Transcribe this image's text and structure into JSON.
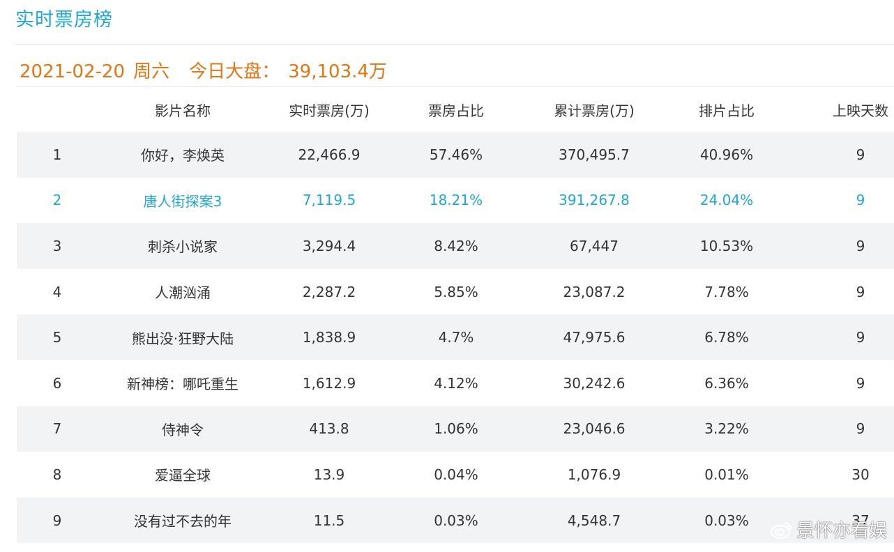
{
  "title": "实时票房榜",
  "summary": {
    "date": "2021-02-20",
    "weekday": "周六",
    "label": "今日大盘：",
    "total": "39,103.4万"
  },
  "columns": {
    "rank": "",
    "name": "影片名称",
    "realtime": "实时票房(万)",
    "share": "票房占比",
    "cumulative": "累计票房(万)",
    "schedule": "排片占比",
    "days": "上映天数"
  },
  "rows": [
    {
      "rank": "1",
      "name": "你好，李焕英",
      "realtime": "22,466.9",
      "share": "57.46%",
      "cumulative": "370,495.7",
      "schedule": "40.96%",
      "days": "9"
    },
    {
      "rank": "2",
      "name": "唐人街探案3",
      "realtime": "7,119.5",
      "share": "18.21%",
      "cumulative": "391,267.8",
      "schedule": "24.04%",
      "days": "9"
    },
    {
      "rank": "3",
      "name": "刺杀小说家",
      "realtime": "3,294.4",
      "share": "8.42%",
      "cumulative": "67,447",
      "schedule": "10.53%",
      "days": "9"
    },
    {
      "rank": "4",
      "name": "人潮汹涌",
      "realtime": "2,287.2",
      "share": "5.85%",
      "cumulative": "23,087.2",
      "schedule": "7.78%",
      "days": "9"
    },
    {
      "rank": "5",
      "name": "熊出没·狂野大陆",
      "realtime": "1,838.9",
      "share": "4.7%",
      "cumulative": "47,975.6",
      "schedule": "6.78%",
      "days": "9"
    },
    {
      "rank": "6",
      "name": "新神榜：哪吒重生",
      "realtime": "1,612.9",
      "share": "4.12%",
      "cumulative": "30,242.6",
      "schedule": "6.36%",
      "days": "9"
    },
    {
      "rank": "7",
      "name": "侍神令",
      "realtime": "413.8",
      "share": "1.06%",
      "cumulative": "23,046.6",
      "schedule": "3.22%",
      "days": "9"
    },
    {
      "rank": "8",
      "name": "爱逼全球",
      "realtime": "13.9",
      "share": "0.04%",
      "cumulative": "1,076.9",
      "schedule": "0.01%",
      "days": "30"
    },
    {
      "rank": "9",
      "name": "没有过不去的年",
      "realtime": "11.5",
      "share": "0.03%",
      "cumulative": "4,548.7",
      "schedule": "0.03%",
      "days": "37"
    }
  ],
  "highlight_row": 2,
  "colors": {
    "title": "#1ea7d9",
    "summary": "#e8750f",
    "highlight": "#1ea7d9",
    "stripe": "#f2f3f5"
  },
  "watermark": "景怀亦看娱"
}
